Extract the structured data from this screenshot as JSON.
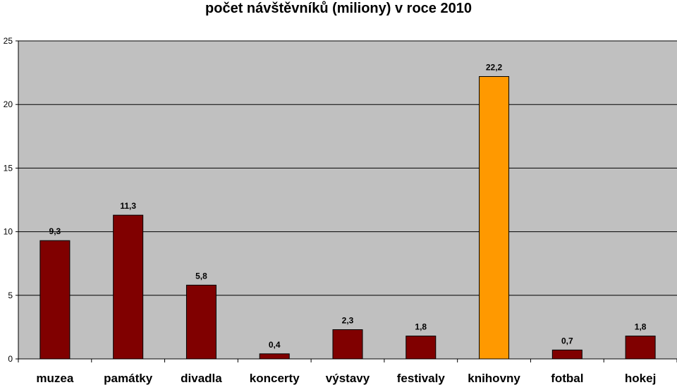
{
  "chart_data": {
    "type": "bar",
    "title": "počet návštěvníků (miliony) v roce 2010",
    "categories": [
      "muzea",
      "památky",
      "divadla",
      "koncerty",
      "výstavy",
      "festivaly",
      "knihovny",
      "fotbal",
      "hokej"
    ],
    "values": [
      9.3,
      11.3,
      5.8,
      0.4,
      2.3,
      1.8,
      22.2,
      0.7,
      1.8
    ],
    "value_labels": [
      "9,3",
      "11,3",
      "5,8",
      "0,4",
      "2,3",
      "1,8",
      "22,2",
      "0,7",
      "1,8"
    ],
    "highlight_index": 6,
    "ylim": [
      0,
      25
    ],
    "yticks": [
      0,
      5,
      10,
      15,
      20,
      25
    ],
    "xlabel": "",
    "ylabel": "",
    "grid": true,
    "legend": "none",
    "colors": {
      "bar": "#800000",
      "highlight": "#FF9900",
      "plot_background": "#C0C0C0",
      "gridline": "#000000"
    }
  }
}
